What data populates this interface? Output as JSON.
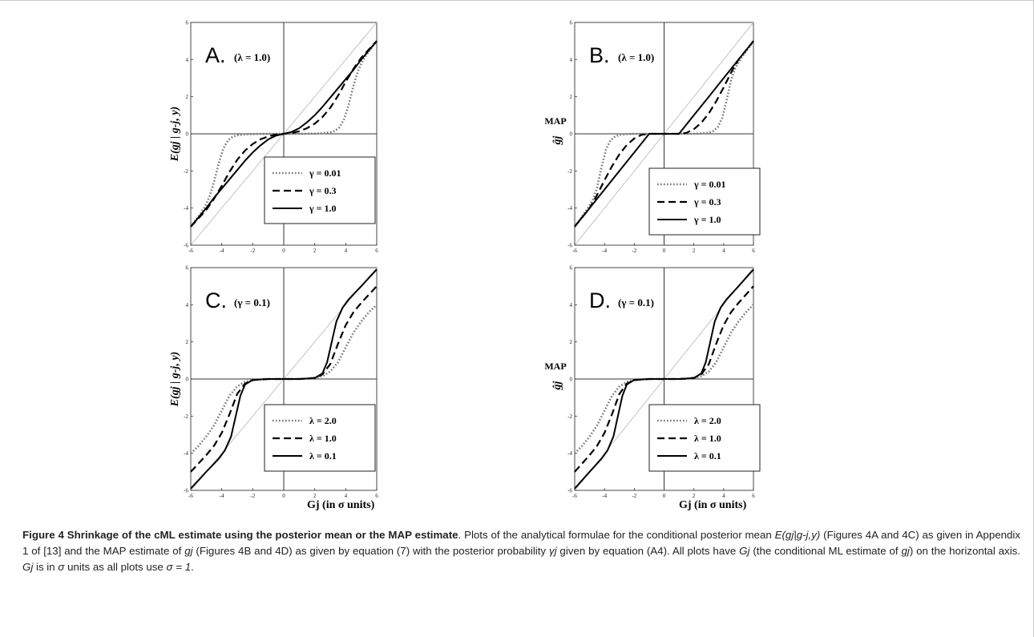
{
  "figure": {
    "number_label": "Figure 4",
    "title": "Shrinkage of the cML estimate using the posterior mean or the MAP estimate",
    "caption_text_1": ". Plots of the analytical formulae for the conditional posterior mean ",
    "caption_math_1": "E(gj|g-j,y)",
    "caption_text_2": " (Figures 4A and 4C) as given in Appendix 1 of [13] and the MAP estimate of ",
    "caption_math_2": "gj",
    "caption_text_3": " (Figures 4B and 4D) as given by equation (7) with the posterior probability ",
    "caption_math_3": "γj",
    "caption_text_4": " given by equation (A4). All plots have ",
    "caption_math_4": "Gj",
    "caption_text_5": " (the conditional ML estimate of ",
    "caption_math_5": "gj",
    "caption_text_6": ") on the horizontal axis. ",
    "caption_math_6": "Gj",
    "caption_text_7": " is in ",
    "caption_math_7": "σ",
    "caption_text_8": " units as all plots use ",
    "caption_math_8": "σ = 1",
    "caption_text_9": "."
  },
  "xlabel": "Gj (in σ units)",
  "ylabel_mean": "E(gj | g-j, y)",
  "ylabel_map_top": "MAP",
  "ylabel_map_sym": "ĝj",
  "chart_data": [
    {
      "type": "line",
      "panel": "A.",
      "param": "(λ = 1.0)",
      "xlim": [
        -6,
        6
      ],
      "ylim": [
        -6,
        6
      ],
      "xticks": [
        -6,
        -4,
        -2,
        0,
        2,
        4,
        6
      ],
      "yticks": [
        -6,
        -4,
        -2,
        0,
        2,
        4,
        6
      ],
      "series": [
        {
          "name": "γ = 0.01",
          "style": "dotted",
          "x": [
            0,
            0.5,
            1,
            1.5,
            2,
            2.5,
            3,
            3.3,
            3.6,
            3.9,
            4.2,
            4.5,
            4.8,
            5.1,
            5.5,
            6
          ],
          "y": [
            0,
            0.001,
            0.003,
            0.006,
            0.012,
            0.03,
            0.08,
            0.16,
            0.35,
            0.8,
            1.6,
            2.6,
            3.4,
            3.95,
            4.45,
            5
          ]
        },
        {
          "name": "γ = 0.3",
          "style": "dashed",
          "x": [
            0,
            0.5,
            1,
            1.5,
            2,
            2.5,
            3,
            3.5,
            4,
            4.5,
            5,
            5.5,
            6
          ],
          "y": [
            0,
            0.04,
            0.14,
            0.3,
            0.55,
            0.9,
            1.4,
            2.05,
            2.8,
            3.5,
            4.1,
            4.55,
            5
          ]
        },
        {
          "name": "γ = 1.0",
          "style": "solid",
          "x": [
            0,
            0.5,
            1,
            1.5,
            2,
            2.5,
            3,
            3.5,
            4,
            4.5,
            5,
            5.5,
            6
          ],
          "y": [
            0,
            0.1,
            0.3,
            0.62,
            1,
            1.45,
            1.95,
            2.45,
            2.95,
            3.45,
            4,
            4.5,
            5
          ]
        }
      ]
    },
    {
      "type": "line",
      "panel": "B.",
      "param": "(λ = 1.0)",
      "xlim": [
        -6,
        6
      ],
      "ylim": [
        -6,
        6
      ],
      "xticks": [
        -6,
        -4,
        -2,
        0,
        2,
        4,
        6
      ],
      "yticks": [
        -6,
        -4,
        -2,
        0,
        2,
        4,
        6
      ],
      "series": [
        {
          "name": "γ = 0.01",
          "style": "dotted",
          "x": [
            0,
            1,
            2,
            2.5,
            3,
            3.3,
            3.6,
            3.9,
            4.2,
            4.5,
            4.8,
            5.2,
            5.6,
            6
          ],
          "y": [
            0,
            0,
            0,
            0.02,
            0.06,
            0.15,
            0.35,
            0.85,
            1.8,
            2.9,
            3.6,
            4.1,
            4.55,
            5
          ]
        },
        {
          "name": "γ = 0.3",
          "style": "dashed",
          "x": [
            0,
            1,
            1.5,
            2,
            2.5,
            3,
            3.5,
            4,
            4.5,
            5,
            5.5,
            6
          ],
          "y": [
            0,
            0,
            0.05,
            0.25,
            0.6,
            1.1,
            1.75,
            2.5,
            3.3,
            4,
            4.5,
            5
          ]
        },
        {
          "name": "γ = 1.0",
          "style": "solid",
          "x": [
            0,
            1,
            1.5,
            2,
            3,
            4,
            5,
            6
          ],
          "y": [
            0,
            0,
            0.5,
            1,
            2,
            3,
            4,
            5
          ]
        }
      ]
    },
    {
      "type": "line",
      "panel": "C.",
      "param": "(γ = 0.1)",
      "xlim": [
        -6,
        6
      ],
      "ylim": [
        -6,
        6
      ],
      "xticks": [
        -6,
        -4,
        -2,
        0,
        2,
        4,
        6
      ],
      "yticks": [
        -6,
        -4,
        -2,
        0,
        2,
        4,
        6
      ],
      "series": [
        {
          "name": "λ = 2.0",
          "style": "dotted",
          "x": [
            0,
            1,
            1.5,
            2,
            2.5,
            3,
            3.5,
            4,
            4.5,
            5,
            5.5,
            6
          ],
          "y": [
            0,
            0,
            0.02,
            0.06,
            0.15,
            0.4,
            0.9,
            1.7,
            2.5,
            3.1,
            3.6,
            4
          ]
        },
        {
          "name": "λ = 1.0",
          "style": "dashed",
          "x": [
            0,
            1,
            1.5,
            2,
            2.5,
            3,
            3.5,
            4,
            4.5,
            5,
            5.5,
            6
          ],
          "y": [
            0,
            0,
            0.02,
            0.06,
            0.25,
            0.8,
            1.9,
            2.9,
            3.6,
            4.1,
            4.55,
            5
          ]
        },
        {
          "name": "λ = 0.1",
          "style": "solid",
          "x": [
            0,
            1,
            1.5,
            2,
            2.5,
            2.8,
            3.1,
            3.4,
            3.8,
            4.2,
            4.6,
            5,
            5.5,
            6
          ],
          "y": [
            0,
            0,
            0.02,
            0.05,
            0.3,
            0.9,
            2,
            3.1,
            3.85,
            4.3,
            4.65,
            5,
            5.45,
            5.9
          ]
        }
      ]
    },
    {
      "type": "line",
      "panel": "D.",
      "param": "(γ = 0.1)",
      "xlim": [
        -6,
        6
      ],
      "ylim": [
        -6,
        6
      ],
      "xticks": [
        -6,
        -4,
        -2,
        0,
        2,
        4,
        6
      ],
      "yticks": [
        -6,
        -4,
        -2,
        0,
        2,
        4,
        6
      ],
      "series": [
        {
          "name": "λ = 2.0",
          "style": "dotted",
          "x": [
            0,
            1,
            1.5,
            2,
            2.5,
            3,
            3.5,
            4,
            4.5,
            5,
            5.5,
            6
          ],
          "y": [
            0,
            0,
            0.02,
            0.06,
            0.15,
            0.4,
            0.9,
            1.7,
            2.5,
            3.1,
            3.6,
            4
          ]
        },
        {
          "name": "λ = 1.0",
          "style": "dashed",
          "x": [
            0,
            1,
            1.5,
            2,
            2.5,
            3,
            3.5,
            4,
            4.5,
            5,
            5.5,
            6
          ],
          "y": [
            0,
            0,
            0.02,
            0.06,
            0.25,
            0.8,
            1.9,
            2.9,
            3.6,
            4.1,
            4.55,
            5
          ]
        },
        {
          "name": "λ = 0.1",
          "style": "solid",
          "x": [
            0,
            1,
            1.5,
            2,
            2.5,
            2.8,
            3.1,
            3.4,
            3.8,
            4.2,
            4.6,
            5,
            5.5,
            6
          ],
          "y": [
            0,
            0,
            0.02,
            0.05,
            0.3,
            0.9,
            2,
            3.1,
            3.85,
            4.3,
            4.65,
            5,
            5.45,
            5.9
          ]
        }
      ]
    }
  ]
}
